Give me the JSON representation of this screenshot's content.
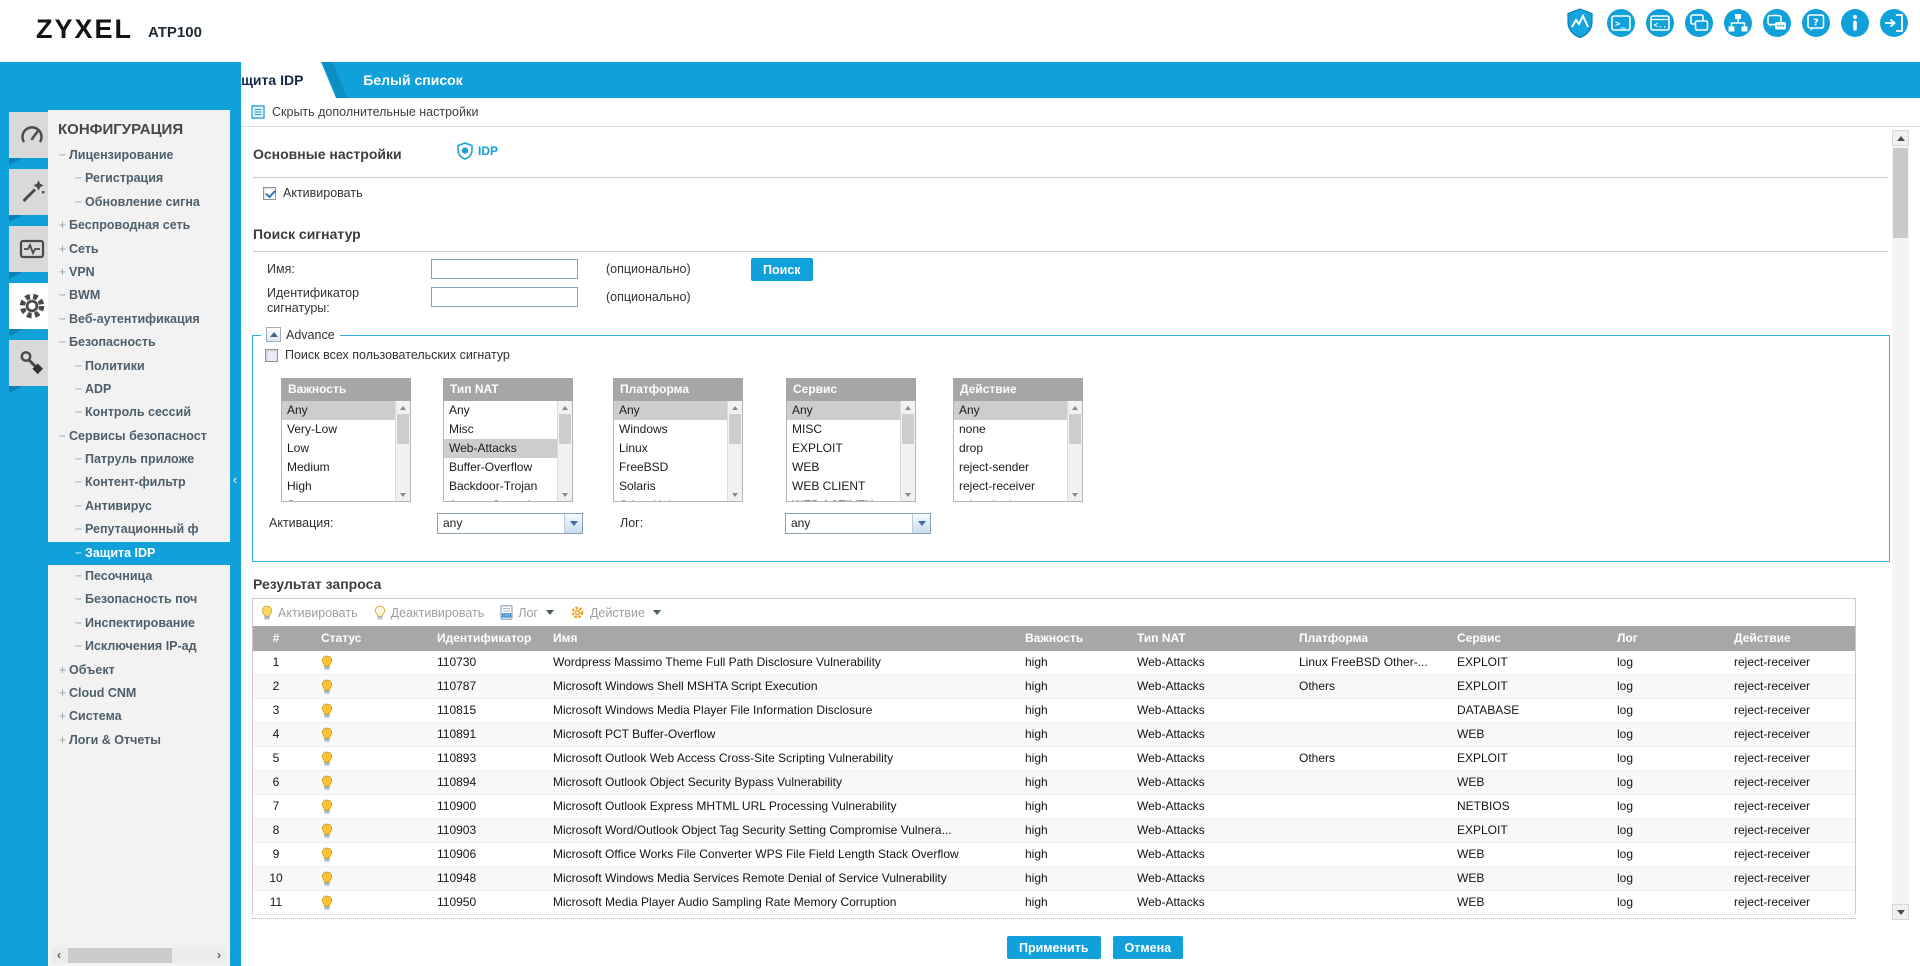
{
  "colors": {
    "accent": "#10a0da",
    "table_header": "#a7a7a7",
    "selected_row": "#cdcdcd"
  },
  "header": {
    "brand": "ZYXEL",
    "model": "ATP100",
    "icons": [
      "security-status",
      "cli-terminal",
      "console",
      "multi-window",
      "network-topology",
      "feedback",
      "help",
      "about",
      "logout"
    ]
  },
  "sidebar": {
    "modules": [
      "dashboard",
      "wizard",
      "monitor",
      "configuration",
      "maintenance"
    ],
    "active_module": "configuration",
    "title": "КОНФИГУРАЦИЯ",
    "items": [
      {
        "prefix": "−",
        "label": "Лицензирование",
        "level": 1
      },
      {
        "prefix": "−",
        "label": "Регистрация",
        "level": 2
      },
      {
        "prefix": "−",
        "label": "Обновление сигна",
        "level": 2
      },
      {
        "prefix": "+",
        "label": "Беспроводная сеть",
        "level": 1
      },
      {
        "prefix": "+",
        "label": "Сеть",
        "level": 1
      },
      {
        "prefix": "+",
        "label": "VPN",
        "level": 1
      },
      {
        "prefix": "−",
        "label": "BWM",
        "level": 1
      },
      {
        "prefix": "−",
        "label": "Веб-аутентификация",
        "level": 1
      },
      {
        "prefix": "−",
        "label": "Безопасность",
        "level": 1
      },
      {
        "prefix": "−",
        "label": "Политики",
        "level": 2
      },
      {
        "prefix": "−",
        "label": "ADP",
        "level": 2
      },
      {
        "prefix": "−",
        "label": "Контроль сессий",
        "level": 2
      },
      {
        "prefix": "−",
        "label": "Сервисы безопасност",
        "level": 1
      },
      {
        "prefix": "−",
        "label": "Патруль приложе",
        "level": 2
      },
      {
        "prefix": "−",
        "label": "Контент-фильтр",
        "level": 2
      },
      {
        "prefix": "−",
        "label": "Антивирус",
        "level": 2
      },
      {
        "prefix": "−",
        "label": "Репутационный ф",
        "level": 2
      },
      {
        "prefix": "−",
        "label": "Защита IDP",
        "level": 2,
        "selected": true
      },
      {
        "prefix": "−",
        "label": "Песочница",
        "level": 2
      },
      {
        "prefix": "−",
        "label": "Безопасность поч",
        "level": 2
      },
      {
        "prefix": "−",
        "label": "Инспектирование",
        "level": 2
      },
      {
        "prefix": "−",
        "label": "Исключения IP-ад",
        "level": 2
      },
      {
        "prefix": "+",
        "label": "Объект",
        "level": 1
      },
      {
        "prefix": "+",
        "label": "Cloud CNM",
        "level": 1
      },
      {
        "prefix": "+",
        "label": "Система",
        "level": 1
      },
      {
        "prefix": "+",
        "label": "Логи & Отчеты",
        "level": 1
      }
    ]
  },
  "tabs": {
    "items": [
      {
        "label": "Защита IDP",
        "active": true
      },
      {
        "label": "Белый список",
        "active": false
      }
    ]
  },
  "main": {
    "toggle_label": "Скрыть дополнительные настройки",
    "general": {
      "heading": "Основные настройки",
      "badge": "IDP",
      "activate": "Активировать",
      "activate_checked": true
    },
    "signature_search": {
      "heading": "Поиск сигнатур",
      "name_label": "Имя:",
      "name_value": "",
      "id_label": "Идентификатор сигнатуры:",
      "id_value": "",
      "optional": "(опционально)",
      "search_button": "Поиск"
    },
    "advance": {
      "legend": "Advance",
      "search_all_label": "Поиск всех пользовательских сигнатур",
      "search_all_checked": false,
      "listboxes": [
        {
          "title": "Важность",
          "selected": "Any",
          "options": [
            "Any",
            "Very-Low",
            "Low",
            "Medium",
            "High",
            "Severe"
          ]
        },
        {
          "title": "Тип NAT",
          "selected": "Web-Attacks",
          "options": [
            "Any",
            "Misc",
            "Web-Attacks",
            "Buffer-Overflow",
            "Backdoor-Trojan",
            "Access-Control"
          ]
        },
        {
          "title": "Платформа",
          "selected": "Any",
          "options": [
            "Any",
            "Windows",
            "Linux",
            "FreeBSD",
            "Solaris",
            "Other-Unix"
          ]
        },
        {
          "title": "Сервис",
          "selected": "Any",
          "options": [
            "Any",
            "MISC",
            "EXPLOIT",
            "WEB",
            "WEB CLIENT",
            "WEB ACTIVEX"
          ]
        },
        {
          "title": "Действие",
          "selected": "Any",
          "options": [
            "Any",
            "none",
            "drop",
            "reject-sender",
            "reject-receiver",
            "reject-both"
          ]
        }
      ],
      "activation_label": "Активация:",
      "activation_value": "any",
      "log_label": "Лог:",
      "log_value": "any"
    },
    "results": {
      "heading": "Результат запроса",
      "toolbar": [
        {
          "icon": "bulb-on-icon",
          "label": "Активировать",
          "dropdown": false
        },
        {
          "icon": "bulb-off-icon",
          "label": "Деактивировать",
          "dropdown": false
        },
        {
          "icon": "log-icon",
          "label": "Лог",
          "dropdown": true
        },
        {
          "icon": "gear-icon",
          "label": "Действие",
          "dropdown": true
        }
      ],
      "columns": [
        "#",
        "Статус",
        "Идентификатор",
        "Имя",
        "Важность",
        "Тип NAT",
        "Платформа",
        "Сервис",
        "Лог",
        "Действие"
      ],
      "rows": [
        {
          "num": "1",
          "status": "on",
          "id": "110730",
          "name": "Wordpress Massimo Theme Full Path Disclosure Vulnerability",
          "severity": "high",
          "type": "Web-Attacks",
          "platform": "Linux FreeBSD Other-...",
          "service": "EXPLOIT",
          "log": "log",
          "action": "reject-receiver"
        },
        {
          "num": "2",
          "status": "on",
          "id": "110787",
          "name": "Microsoft Windows Shell MSHTA Script Execution",
          "severity": "high",
          "type": "Web-Attacks",
          "platform": "Others",
          "service": "EXPLOIT",
          "log": "log",
          "action": "reject-receiver"
        },
        {
          "num": "3",
          "status": "on",
          "id": "110815",
          "name": "Microsoft Windows Media Player File Information Disclosure",
          "severity": "high",
          "type": "Web-Attacks",
          "platform": "",
          "service": "DATABASE",
          "log": "log",
          "action": "reject-receiver"
        },
        {
          "num": "4",
          "status": "on",
          "id": "110891",
          "name": "Microsoft PCT Buffer-Overflow",
          "severity": "high",
          "type": "Web-Attacks",
          "platform": "",
          "service": "WEB",
          "log": "log",
          "action": "reject-receiver"
        },
        {
          "num": "5",
          "status": "on",
          "id": "110893",
          "name": "Microsoft Outlook Web Access Cross-Site Scripting Vulnerability",
          "severity": "high",
          "type": "Web-Attacks",
          "platform": "Others",
          "service": "EXPLOIT",
          "log": "log",
          "action": "reject-receiver"
        },
        {
          "num": "6",
          "status": "on",
          "id": "110894",
          "name": "Microsoft Outlook Object Security Bypass Vulnerability",
          "severity": "high",
          "type": "Web-Attacks",
          "platform": "",
          "service": "WEB",
          "log": "log",
          "action": "reject-receiver"
        },
        {
          "num": "7",
          "status": "on",
          "id": "110900",
          "name": "Microsoft Outlook Express MHTML URL Processing Vulnerability",
          "severity": "high",
          "type": "Web-Attacks",
          "platform": "",
          "service": "NETBIOS",
          "log": "log",
          "action": "reject-receiver"
        },
        {
          "num": "8",
          "status": "on",
          "id": "110903",
          "name": "Microsoft Word/Outlook Object Tag Security Setting Compromise Vulnera...",
          "severity": "high",
          "type": "Web-Attacks",
          "platform": "",
          "service": "EXPLOIT",
          "log": "log",
          "action": "reject-receiver"
        },
        {
          "num": "9",
          "status": "on",
          "id": "110906",
          "name": "Microsoft Office Works File Converter WPS File Field Length Stack Overflow",
          "severity": "high",
          "type": "Web-Attacks",
          "platform": "",
          "service": "WEB",
          "log": "log",
          "action": "reject-receiver"
        },
        {
          "num": "10",
          "status": "on",
          "id": "110948",
          "name": "Microsoft Windows Media Services Remote Denial of Service Vulnerability",
          "severity": "high",
          "type": "Web-Attacks",
          "platform": "",
          "service": "WEB",
          "log": "log",
          "action": "reject-receiver"
        },
        {
          "num": "11",
          "status": "on",
          "id": "110950",
          "name": "Microsoft Media Player Audio Sampling Rate Memory Corruption",
          "severity": "high",
          "type": "Web-Attacks",
          "platform": "",
          "service": "WEB",
          "log": "log",
          "action": "reject-receiver"
        }
      ]
    },
    "footer": {
      "apply": "Применить",
      "cancel": "Отмена"
    }
  }
}
